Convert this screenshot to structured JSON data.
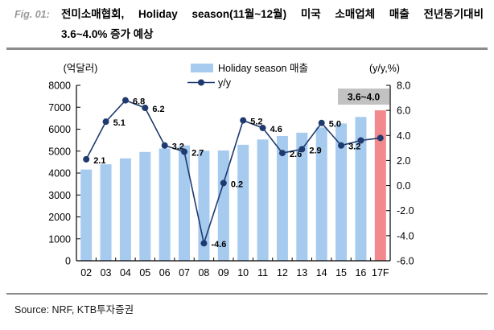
{
  "figure": {
    "fig_label": "Fig. 01:",
    "title_line1": "전미소매협회, Holiday season(11월~12월) 미국 소매업체 매출 전년동기대비",
    "title_line2": "3.6~4.0% 증가 예상"
  },
  "footer": {
    "source": "Source: NRF, KTB투자증권"
  },
  "chart_data": {
    "type": "bar+line combo",
    "categories": [
      "02",
      "03",
      "04",
      "05",
      "06",
      "07",
      "08",
      "09",
      "10",
      "11",
      "12",
      "13",
      "14",
      "15",
      "16",
      "17F"
    ],
    "series": [
      {
        "name": "Holiday season 매출",
        "type": "bar",
        "axis": "left",
        "values": [
          4160,
          4400,
          4670,
          4960,
          5120,
          5260,
          5020,
          5030,
          5290,
          5530,
          5690,
          5840,
          6080,
          6260,
          6560,
          6860
        ],
        "color": "#a6cbef",
        "highlight_index": 15,
        "highlight_color": "#f2898d"
      },
      {
        "name": "y/y",
        "type": "line",
        "axis": "right",
        "values": [
          2.1,
          5.1,
          6.8,
          6.2,
          3.2,
          2.7,
          -4.6,
          0.2,
          5.2,
          4.6,
          2.6,
          2.9,
          5.0,
          3.2,
          3.6,
          3.8
        ],
        "point_labels": [
          "2.1",
          "5.1",
          "6.8",
          "6.2",
          "3.2",
          "2.7",
          "-4.6",
          "0.2",
          "5.2",
          "4.6",
          "2.6",
          "2.9",
          "5.0",
          "3.2",
          "",
          ""
        ],
        "color": "#1f3a6e"
      }
    ],
    "left_axis": {
      "label": "(억달러)",
      "min": 0,
      "max": 8000,
      "step": 1000
    },
    "right_axis": {
      "label": "(y/y,%)",
      "min": -6.0,
      "max": 8.0,
      "step": 2.0
    },
    "annotation": {
      "text": "3.6~4.0",
      "bg": "#c2c2c2",
      "applies_to": "17F"
    },
    "legend": {
      "position": "top-center"
    },
    "grid": "off"
  }
}
